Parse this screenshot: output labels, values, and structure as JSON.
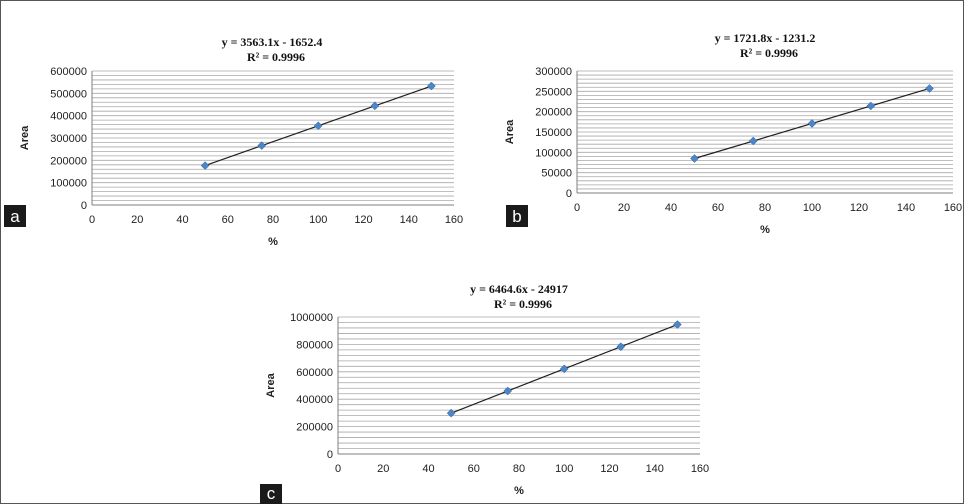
{
  "chart_data": [
    {
      "type": "scatter",
      "panel_label": "a",
      "equation": "y = 3563.1x - 1652.4",
      "r_squared": "R² = 0.9996",
      "xlabel": "%",
      "ylabel": "Area",
      "xlim": [
        0,
        160
      ],
      "ylim": [
        0,
        600000
      ],
      "x_ticks": [
        "0",
        "20",
        "40",
        "60",
        "80",
        "100",
        "120",
        "140",
        "160"
      ],
      "y_ticks": [
        "0",
        "100000",
        "200000",
        "300000",
        "400000",
        "500000",
        "600000"
      ],
      "grid": true,
      "trendline": "linear",
      "trend_slope": 3563.1,
      "trend_intercept": -1652.4,
      "series": [
        {
          "x": [
            50,
            75,
            100,
            125,
            150
          ],
          "y": [
            176500,
            266000,
            354700,
            443800,
            532800
          ]
        }
      ]
    },
    {
      "type": "scatter",
      "panel_label": "b",
      "equation": "y = 1721.8x - 1231.2",
      "r_squared": "R² = 0.9996",
      "xlabel": "%",
      "ylabel": "Area",
      "xlim": [
        0,
        160
      ],
      "ylim": [
        0,
        300000
      ],
      "x_ticks": [
        "0",
        "20",
        "40",
        "60",
        "80",
        "100",
        "120",
        "140",
        "160"
      ],
      "y_ticks": [
        "0",
        "50000",
        "100000",
        "150000",
        "200000",
        "250000",
        "300000"
      ],
      "grid": true,
      "trendline": "linear",
      "trend_slope": 1721.8,
      "trend_intercept": -1231.2,
      "series": [
        {
          "x": [
            50,
            75,
            100,
            125,
            150
          ],
          "y": [
            84800,
            127900,
            171000,
            214000,
            257000
          ]
        }
      ]
    },
    {
      "type": "scatter",
      "panel_label": "c",
      "equation": "y = 6464.6x - 24917",
      "r_squared": "R² = 0.9996",
      "xlabel": "%",
      "ylabel": "Area",
      "xlim": [
        0,
        160
      ],
      "ylim": [
        0,
        1000000
      ],
      "x_ticks": [
        "0",
        "20",
        "40",
        "60",
        "80",
        "100",
        "120",
        "140",
        "160"
      ],
      "y_ticks": [
        "0",
        "200000",
        "400000",
        "600000",
        "800000",
        "1000000"
      ],
      "grid": true,
      "trendline": "linear",
      "trend_slope": 6464.6,
      "trend_intercept": -24917,
      "series": [
        {
          "x": [
            50,
            75,
            100,
            125,
            150
          ],
          "y": [
            298300,
            459900,
            621500,
            783200,
            944800
          ]
        }
      ]
    }
  ]
}
